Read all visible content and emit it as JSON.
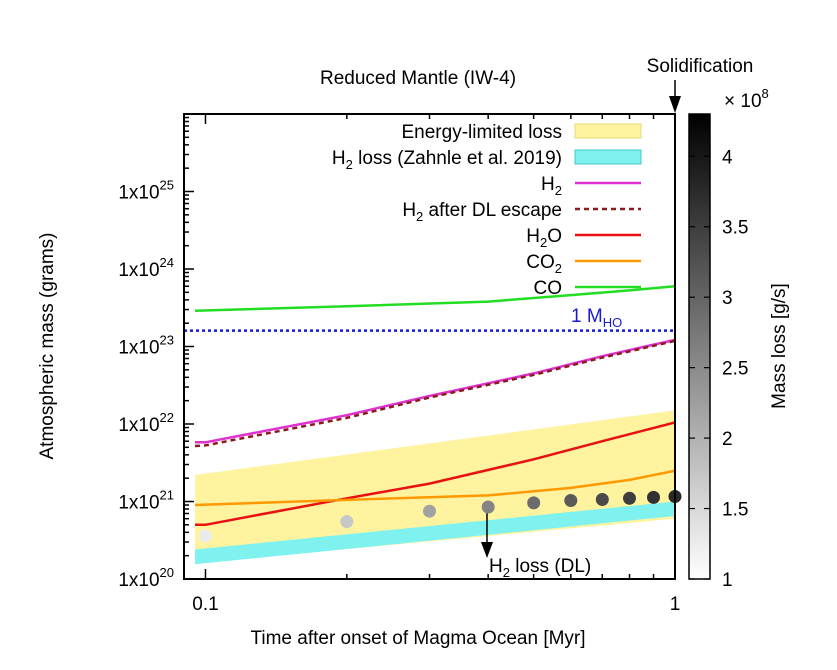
{
  "chart_data": {
    "type": "line",
    "title": "Reduced Mantle (IW-4)",
    "xlabel": "Time after onset of Magma Ocean [Myr]",
    "ylabel": "Atmospheric mass (grams)",
    "xscale": "log",
    "yscale": "log",
    "xlim": [
      0.09,
      1.0
    ],
    "ylim": [
      1e+20,
      1e+26
    ],
    "x_ticks": [
      {
        "value": 0.1,
        "label": "0.1"
      },
      {
        "value": 1.0,
        "label": "1"
      }
    ],
    "y_ticks": [
      {
        "value": 1e+20,
        "base": "1x10",
        "exp": "20"
      },
      {
        "value": 1e+21,
        "base": "1x10",
        "exp": "21"
      },
      {
        "value": 1e+22,
        "base": "1x10",
        "exp": "22"
      },
      {
        "value": 1e+23,
        "base": "1x10",
        "exp": "23"
      },
      {
        "value": 1e+24,
        "base": "1x10",
        "exp": "24"
      },
      {
        "value": 1e+25,
        "base": "1x10",
        "exp": "25"
      }
    ],
    "legend": {
      "placement": "top-right",
      "entries": [
        {
          "key": "energy_limited",
          "text": "Energy-limited loss",
          "sub": "",
          "after": ""
        },
        {
          "key": "h2_loss_zahnle",
          "text": "H",
          "sub": "2",
          "after": " loss (Zahnle et al. 2019)"
        },
        {
          "key": "h2",
          "text": "H",
          "sub": "2",
          "after": ""
        },
        {
          "key": "h2_dl",
          "text": "H",
          "sub": "2",
          "after": " after DL escape"
        },
        {
          "key": "h2o",
          "text": "H",
          "sub": "2",
          "after": "O"
        },
        {
          "key": "co2",
          "text": "CO",
          "sub": "2",
          "after": ""
        },
        {
          "key": "co",
          "text": "CO",
          "sub": "",
          "after": ""
        }
      ]
    },
    "bands": [
      {
        "key": "energy_limited",
        "color": "#fff3a0",
        "x": [
          0.095,
          1.0
        ],
        "lower": [
          1.6e+20,
          6e+20
        ],
        "upper": [
          2.2e+21,
          1.5e+22
        ]
      },
      {
        "key": "h2_loss_zahnle",
        "color": "#7ff2f0",
        "x": [
          0.095,
          1.0
        ],
        "lower": [
          1.55e+20,
          6.5e+20
        ],
        "upper": [
          2.4e+20,
          1e+21
        ]
      }
    ],
    "series": [
      {
        "key": "co",
        "color": "#22dd22",
        "dash": "",
        "x": [
          0.095,
          0.2,
          0.4,
          0.6,
          0.8,
          1.0
        ],
        "y": [
          2.9e+23,
          3.3e+23,
          3.8e+23,
          4.6e+23,
          5.3e+23,
          6e+23
        ]
      },
      {
        "key": "h2",
        "color": "#e030d0",
        "dash": "",
        "x": [
          0.095,
          0.1,
          0.2,
          0.3,
          0.5,
          0.7,
          1.0
        ],
        "y": [
          5.8e+21,
          5.8e+21,
          1.3e+22,
          2.3e+22,
          4.5e+22,
          7.5e+22,
          1.22e+23
        ]
      },
      {
        "key": "h2_dl",
        "color": "#8b1a1a",
        "dash": "5,4",
        "x": [
          0.095,
          0.1,
          0.2,
          0.3,
          0.5,
          0.7,
          1.0
        ],
        "y": [
          5.2e+21,
          5.3e+21,
          1.2e+22,
          2.2e+22,
          4.3e+22,
          7.2e+22,
          1.18e+23
        ]
      },
      {
        "key": "h2o",
        "color": "#e81010",
        "dash": "",
        "x": [
          0.095,
          0.1,
          0.2,
          0.3,
          0.5,
          0.7,
          1.0
        ],
        "y": [
          5e+20,
          5e+20,
          1.1e+21,
          1.7e+21,
          3.5e+21,
          6e+21,
          1.05e+22
        ]
      },
      {
        "key": "co2",
        "color": "#ff9900",
        "dash": "",
        "x": [
          0.095,
          0.2,
          0.4,
          0.6,
          0.8,
          1.0
        ],
        "y": [
          9e+20,
          1.05e+21,
          1.2e+21,
          1.5e+21,
          1.9e+21,
          2.5e+21
        ]
      }
    ],
    "dl_points": {
      "label_text": "H",
      "label_sub": "2",
      "label_after": " loss (DL)",
      "x": [
        0.1,
        0.2,
        0.3,
        0.4,
        0.5,
        0.6,
        0.7,
        0.8,
        0.9,
        1.0
      ],
      "y": [
        3.6e+20,
        5.5e+20,
        7.5e+20,
        8.5e+20,
        9.6e+20,
        1.03e+21,
        1.06e+21,
        1.1e+21,
        1.13e+21,
        1.16e+21
      ],
      "mass_loss": [
        1.0,
        1.6,
        2.2,
        2.7,
        3.1,
        3.4,
        3.65,
        3.85,
        4.05,
        4.2
      ]
    },
    "reference_line": {
      "y": 1.6e+23,
      "label": "1 M",
      "label_sub": "HO",
      "color": "#1a1ad0"
    },
    "solidification": {
      "label": "Solidification",
      "x": 1.0
    },
    "colorbar": {
      "label": "Mass loss [g/s]",
      "multiplier_base": "× 10",
      "multiplier_exp": "8",
      "range": [
        1,
        4.3
      ],
      "ticks": [
        "1",
        "1.5",
        "2",
        "2.5",
        "3",
        "3.5",
        "4"
      ],
      "tick_values": [
        1,
        1.5,
        2,
        2.5,
        3,
        3.5,
        4
      ],
      "color_low": "#ffffff",
      "color_high": "#000000"
    }
  }
}
